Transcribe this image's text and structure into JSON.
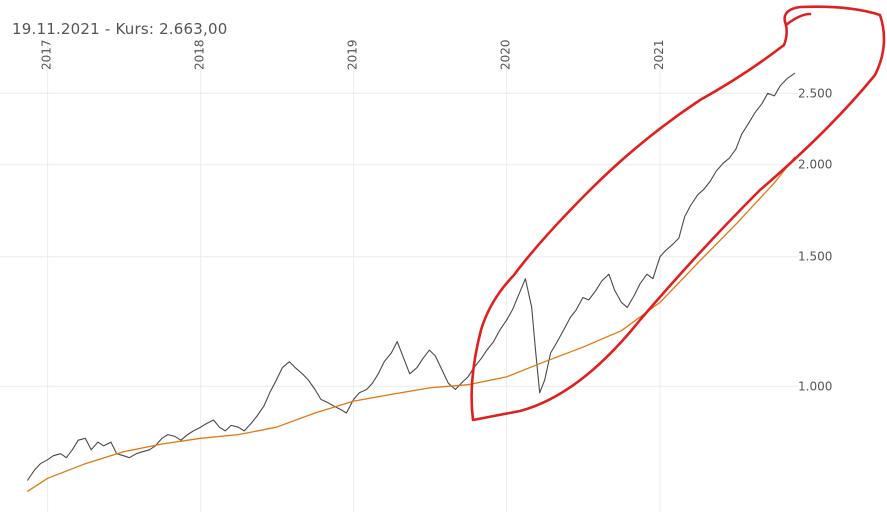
{
  "header": {
    "date": "19.11.2021",
    "separator": " - ",
    "price_label": "Kurs:",
    "price_value": "2.663,00"
  },
  "colors": {
    "price_line": "#4a4a4a",
    "moving_average": "#e07810",
    "annotation": "#e02020",
    "grid": "#ececec"
  },
  "chart_data": {
    "type": "line",
    "y_scale": "log",
    "ylim": [
      690,
      3000
    ],
    "xlim": [
      "2016-11-01",
      "2021-12-01"
    ],
    "x_tick_labels": [
      "2017",
      "2018",
      "2019",
      "2020",
      "2021"
    ],
    "x_ticks": [
      "2017-01-01",
      "2018-01-01",
      "2019-01-01",
      "2020-01-01",
      "2021-01-01"
    ],
    "y_tick_labels": [
      "1.000",
      "1.500",
      "2.000",
      "2.500"
    ],
    "y_ticks": [
      1000,
      1500,
      2000,
      2500
    ],
    "grid": true,
    "annotation": "hand-drawn red outline around the 2020–2021 rally",
    "series": [
      {
        "key": "price",
        "x": [
          "2016-11-14",
          "2016-12-01",
          "2016-12-15",
          "2017-01-01",
          "2017-01-15",
          "2017-02-01",
          "2017-02-15",
          "2017-03-01",
          "2017-03-15",
          "2017-04-01",
          "2017-04-15",
          "2017-05-01",
          "2017-05-15",
          "2017-06-01",
          "2017-06-15",
          "2017-07-01",
          "2017-07-15",
          "2017-08-01",
          "2017-08-15",
          "2017-09-01",
          "2017-09-15",
          "2017-10-01",
          "2017-10-15",
          "2017-11-01",
          "2017-11-15",
          "2017-12-01",
          "2017-12-15",
          "2018-01-01",
          "2018-01-15",
          "2018-02-01",
          "2018-02-15",
          "2018-03-01",
          "2018-03-15",
          "2018-04-01",
          "2018-04-15",
          "2018-05-01",
          "2018-05-15",
          "2018-06-01",
          "2018-06-15",
          "2018-07-01",
          "2018-07-15",
          "2018-08-01",
          "2018-08-15",
          "2018-09-01",
          "2018-09-15",
          "2018-10-01",
          "2018-10-15",
          "2018-11-01",
          "2018-11-15",
          "2018-12-01",
          "2018-12-15",
          "2019-01-01",
          "2019-01-15",
          "2019-02-01",
          "2019-02-15",
          "2019-03-01",
          "2019-03-15",
          "2019-04-01",
          "2019-04-15",
          "2019-05-01",
          "2019-05-15",
          "2019-06-01",
          "2019-06-15",
          "2019-07-01",
          "2019-07-15",
          "2019-08-01",
          "2019-08-15",
          "2019-09-01",
          "2019-09-15",
          "2019-10-01",
          "2019-10-15",
          "2019-11-01",
          "2019-11-15",
          "2019-12-01",
          "2019-12-15",
          "2020-01-01",
          "2020-01-15",
          "2020-02-01",
          "2020-02-15",
          "2020-03-01",
          "2020-03-10",
          "2020-03-20",
          "2020-04-01",
          "2020-04-15",
          "2020-05-01",
          "2020-05-15",
          "2020-06-01",
          "2020-06-15",
          "2020-07-01",
          "2020-07-15",
          "2020-08-01",
          "2020-08-15",
          "2020-09-01",
          "2020-09-15",
          "2020-10-01",
          "2020-10-15",
          "2020-11-01",
          "2020-11-15",
          "2020-12-01",
          "2020-12-15",
          "2021-01-01",
          "2021-01-15",
          "2021-02-01",
          "2021-02-15",
          "2021-03-01",
          "2021-03-15",
          "2021-04-01",
          "2021-04-15",
          "2021-05-01",
          "2021-05-15",
          "2021-06-01",
          "2021-06-15",
          "2021-07-01",
          "2021-07-15",
          "2021-08-01",
          "2021-08-15",
          "2021-09-01",
          "2021-09-15",
          "2021-10-01",
          "2021-10-15",
          "2021-11-01",
          "2021-11-19"
        ],
        "values": [
          745,
          770,
          785,
          795,
          805,
          810,
          800,
          820,
          845,
          850,
          820,
          840,
          830,
          840,
          810,
          805,
          800,
          810,
          815,
          820,
          830,
          850,
          860,
          855,
          845,
          860,
          870,
          880,
          890,
          900,
          880,
          870,
          885,
          880,
          870,
          890,
          910,
          940,
          980,
          1020,
          1060,
          1080,
          1060,
          1040,
          1020,
          990,
          960,
          950,
          940,
          930,
          920,
          960,
          980,
          990,
          1010,
          1040,
          1080,
          1110,
          1150,
          1090,
          1040,
          1060,
          1090,
          1120,
          1100,
          1050,
          1010,
          990,
          1010,
          1030,
          1060,
          1090,
          1120,
          1150,
          1190,
          1230,
          1270,
          1340,
          1400,
          1280,
          1120,
          980,
          1020,
          1110,
          1150,
          1190,
          1240,
          1270,
          1320,
          1310,
          1350,
          1390,
          1420,
          1350,
          1300,
          1280,
          1330,
          1380,
          1420,
          1400,
          1500,
          1530,
          1560,
          1590,
          1700,
          1760,
          1820,
          1850,
          1900,
          1960,
          2010,
          2040,
          2100,
          2200,
          2280,
          2350,
          2420,
          2500,
          2480,
          2560,
          2620,
          2663
        ]
      },
      {
        "key": "sma200",
        "x": [
          "2016-11-14",
          "2017-01-01",
          "2017-04-01",
          "2017-07-01",
          "2017-10-01",
          "2018-01-01",
          "2018-04-01",
          "2018-07-01",
          "2018-10-01",
          "2019-01-01",
          "2019-04-01",
          "2019-07-01",
          "2019-10-01",
          "2020-01-01",
          "2020-04-01",
          "2020-07-01",
          "2020-10-01",
          "2021-01-01",
          "2021-04-01",
          "2021-07-01",
          "2021-10-01",
          "2021-11-19"
        ],
        "values": [
          720,
          750,
          785,
          815,
          835,
          850,
          860,
          880,
          920,
          955,
          975,
          995,
          1005,
          1030,
          1080,
          1130,
          1190,
          1300,
          1470,
          1660,
          1890,
          2050
        ]
      }
    ]
  }
}
